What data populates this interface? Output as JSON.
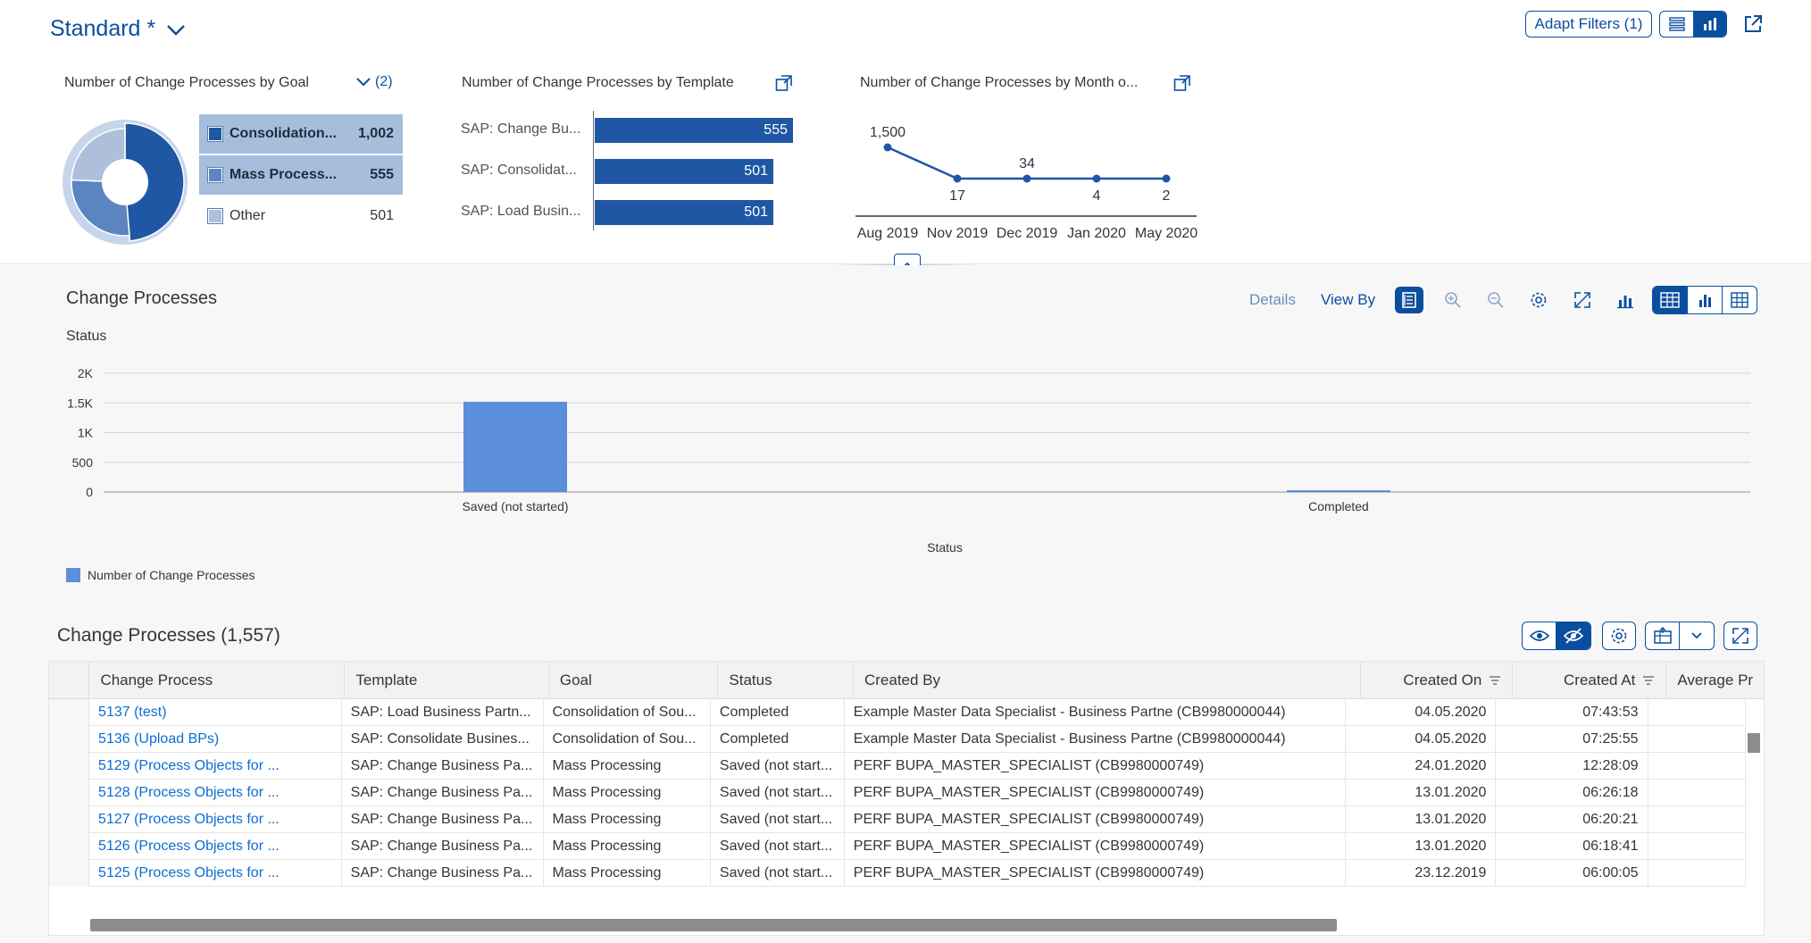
{
  "header": {
    "variant_title": "Standard *",
    "adapt_filters_label": "Adapt Filters (1)"
  },
  "cards": {
    "goal": {
      "title": "Number of Change Processes by Goal",
      "dropdown_count": "(2)",
      "legend": [
        {
          "label": "Consolidation...",
          "value": "1,002",
          "color": "#1f57a5"
        },
        {
          "label": "Mass Process...",
          "value": "555",
          "color": "#5a85c1"
        },
        {
          "label": "Other",
          "value": "501",
          "color": "#aebfdb"
        }
      ]
    },
    "template": {
      "title": "Number of Change Processes by Template",
      "bars": [
        {
          "label": "SAP: Change Bu...",
          "value": "555"
        },
        {
          "label": "SAP: Consolidat...",
          "value": "501"
        },
        {
          "label": "SAP: Load Busin...",
          "value": "501"
        }
      ]
    },
    "month": {
      "title": "Number of Change Processes by Month o...",
      "points": [
        {
          "label": "Aug 2019",
          "value": "1,500"
        },
        {
          "label": "Nov 2019",
          "value": "17"
        },
        {
          "label": "Dec 2019",
          "value": "34"
        },
        {
          "label": "Jan 2020",
          "value": "4"
        },
        {
          "label": "May 2020",
          "value": "2"
        }
      ]
    }
  },
  "chart_section": {
    "title": "Change Processes",
    "details_label": "Details",
    "view_by_label": "View By",
    "status_label": "Status",
    "legend_label": "Number of Change Processes"
  },
  "chart_data": {
    "type": "bar",
    "title": "Change Processes",
    "xlabel": "Status",
    "ylabel": "Status",
    "categories": [
      "Saved (not started)",
      "Completed"
    ],
    "series": [
      {
        "name": "Number of Change Processes",
        "values": [
          1520,
          30
        ]
      }
    ],
    "ylim": [
      0,
      2000
    ],
    "yticks": [
      "0",
      "500",
      "1K",
      "1.5K",
      "2K"
    ],
    "color": "#5b8fd9"
  },
  "table": {
    "title": "Change Processes (1,557)",
    "columns": [
      "Change Process",
      "Template",
      "Goal",
      "Status",
      "Created By",
      "Created On",
      "Created At",
      "Average Pr"
    ],
    "rows": [
      [
        "5137 (test)",
        "SAP: Load Business Partn...",
        "Consolidation of Sou...",
        "Completed",
        "Example Master Data Specialist - Business Partne (CB9980000044)",
        "04.05.2020",
        "07:43:53"
      ],
      [
        "5136 (Upload BPs)",
        "SAP: Consolidate Busines...",
        "Consolidation of Sou...",
        "Completed",
        "Example Master Data Specialist - Business Partne (CB9980000044)",
        "04.05.2020",
        "07:25:55"
      ],
      [
        "5129 (Process Objects for ...",
        "SAP: Change Business Pa...",
        "Mass Processing",
        "Saved (not start...",
        "PERF BUPA_MASTER_SPECIALIST (CB9980000749)",
        "24.01.2020",
        "12:28:09"
      ],
      [
        "5128 (Process Objects for ...",
        "SAP: Change Business Pa...",
        "Mass Processing",
        "Saved (not start...",
        "PERF BUPA_MASTER_SPECIALIST (CB9980000749)",
        "13.01.2020",
        "06:26:18"
      ],
      [
        "5127 (Process Objects for ...",
        "SAP: Change Business Pa...",
        "Mass Processing",
        "Saved (not start...",
        "PERF BUPA_MASTER_SPECIALIST (CB9980000749)",
        "13.01.2020",
        "06:20:21"
      ],
      [
        "5126 (Process Objects for ...",
        "SAP: Change Business Pa...",
        "Mass Processing",
        "Saved (not start...",
        "PERF BUPA_MASTER_SPECIALIST (CB9980000749)",
        "13.01.2020",
        "06:18:41"
      ],
      [
        "5125 (Process Objects for ...",
        "SAP: Change Business Pa...",
        "Mass Processing",
        "Saved (not start...",
        "PERF BUPA_MASTER_SPECIALIST (CB9980000749)",
        "23.12.2019",
        "06:00:05"
      ]
    ]
  }
}
